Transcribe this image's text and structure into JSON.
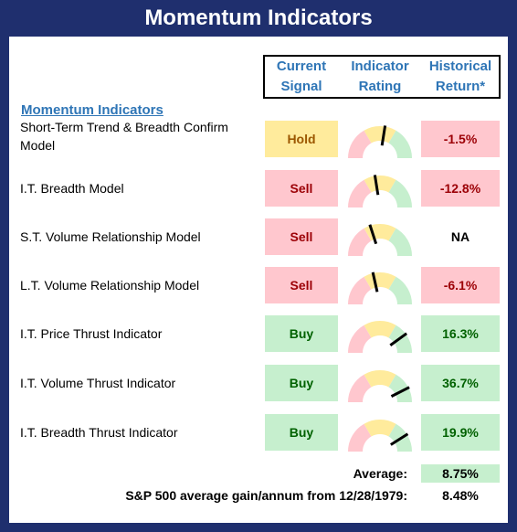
{
  "title": "Momentum Indicators",
  "headers": {
    "signal": [
      "Current",
      "Signal"
    ],
    "rating": [
      "Indicator",
      "Rating"
    ],
    "return": [
      "Historical",
      "Return*"
    ]
  },
  "section_title": "Momentum Indicators",
  "colors": {
    "navy": "#1f2f6e",
    "header_blue": "#2e75b6",
    "hold_bg": "#ffeb9c",
    "hold_text": "#9c5700",
    "sell_bg": "#ffc7ce",
    "sell_text": "#9c0006",
    "buy_bg": "#c6efce",
    "buy_text": "#006100"
  },
  "rows": [
    {
      "label_lines": [
        "Short-Term Trend & Breadth Confirm",
        "Model"
      ],
      "signal": "Hold",
      "rating_needle": 0.55,
      "return": "-1.5%",
      "return_style": "sell"
    },
    {
      "label_lines": [
        "I.T. Breadth Model"
      ],
      "signal": "Sell",
      "rating_needle": 0.45,
      "return": "-12.8%",
      "return_style": "sell"
    },
    {
      "label_lines": [
        "S.T. Volume Relationship Model"
      ],
      "signal": "Sell",
      "rating_needle": 0.4,
      "return": "NA",
      "return_style": "none"
    },
    {
      "label_lines": [
        "L.T. Volume Relationship Model"
      ],
      "signal": "Sell",
      "rating_needle": 0.43,
      "return": "-6.1%",
      "return_style": "sell"
    },
    {
      "label_lines": [
        "I.T. Price Thrust Indicator"
      ],
      "signal": "Buy",
      "rating_needle": 0.8,
      "return": "16.3%",
      "return_style": "buy"
    },
    {
      "label_lines": [
        "I.T. Volume Thrust Indicator"
      ],
      "signal": "Buy",
      "rating_needle": 0.85,
      "return": "36.7%",
      "return_style": "buy"
    },
    {
      "label_lines": [
        "I.T. Breadth Thrust Indicator"
      ],
      "signal": "Buy",
      "rating_needle": 0.82,
      "return": "19.9%",
      "return_style": "buy"
    }
  ],
  "average": {
    "label": "Average:",
    "value": "8.75%"
  },
  "sp500": {
    "label": "S&P 500 average gain/annum from 12/28/1979:",
    "value": "8.48%"
  }
}
